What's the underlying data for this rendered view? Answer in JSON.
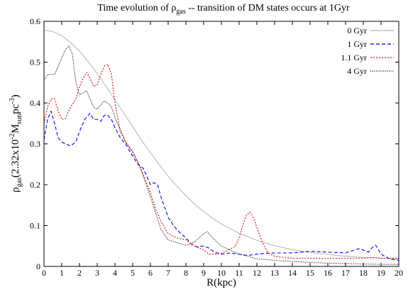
{
  "chart_data": {
    "type": "line",
    "title_prefix": "Time evolution of ρ",
    "title_sub": "gas",
    "title_suffix": " -- transition of DM states occurs at 1Gyr",
    "xlabel": "R(kpc)",
    "ylabel_parts": {
      "rho": "ρ",
      "rho_sub": "gas",
      "open": "(2.32x10",
      "exp1": "-2",
      "m": "M",
      "m_sub": "sun",
      "pc": "pc",
      "exp2": "-3",
      "close": ")"
    },
    "xlim": [
      0,
      20
    ],
    "ylim": [
      0,
      0.6
    ],
    "x_ticks": [
      0,
      1,
      2,
      3,
      4,
      5,
      6,
      7,
      8,
      9,
      10,
      11,
      12,
      13,
      14,
      15,
      16,
      17,
      18,
      19,
      20
    ],
    "x_tick_labels": [
      "0",
      "1",
      "2",
      "3",
      "4",
      "5",
      "6",
      "7",
      "8",
      "9",
      "10",
      "11",
      "12",
      "13",
      "14",
      "15",
      "16",
      "17",
      "18",
      "19",
      "20"
    ],
    "y_ticks": [
      0,
      0.1,
      0.2,
      0.3,
      0.4,
      0.5,
      0.6
    ],
    "y_tick_labels": [
      "0",
      "0.1",
      "0.2",
      "0.3",
      "0.4",
      "0.5",
      "0.6"
    ],
    "grid": false,
    "legend_position": "top-right",
    "series": [
      {
        "name": "0 Gyr",
        "color": "#b4b4b4",
        "dash": "",
        "x": [
          0,
          0.5,
          1,
          1.5,
          2,
          2.5,
          3,
          3.5,
          4,
          4.5,
          5,
          5.5,
          6,
          6.5,
          7,
          7.5,
          8,
          8.5,
          9,
          9.5,
          10,
          11,
          12,
          13,
          14,
          15,
          16,
          17,
          18,
          19,
          20
        ],
        "y": [
          0.578,
          0.575,
          0.565,
          0.548,
          0.527,
          0.501,
          0.472,
          0.44,
          0.408,
          0.375,
          0.342,
          0.309,
          0.278,
          0.249,
          0.221,
          0.196,
          0.173,
          0.152,
          0.134,
          0.118,
          0.104,
          0.081,
          0.064,
          0.051,
          0.041,
          0.034,
          0.029,
          0.025,
          0.022,
          0.02,
          0.018
        ]
      },
      {
        "name": "1 Gyr",
        "color": "#0000ff",
        "dash": "5,3",
        "x": [
          0,
          0.2,
          0.4,
          0.6,
          0.8,
          1.0,
          1.2,
          1.5,
          1.8,
          2.0,
          2.3,
          2.6,
          2.8,
          3.0,
          3.2,
          3.4,
          3.6,
          3.8,
          4.0,
          4.3,
          4.6,
          5.0,
          5.3,
          5.6,
          5.8,
          6.0,
          6.2,
          6.4,
          6.6,
          6.8,
          7.0,
          7.3,
          7.6,
          8.0,
          8.3,
          8.6,
          9.0,
          9.3,
          9.6,
          10.0,
          10.5,
          11.0,
          11.5,
          12.0,
          12.5,
          13.0,
          14.0,
          15.0,
          16.0,
          16.5,
          17.0,
          17.5,
          17.8,
          18.0,
          18.3,
          18.5,
          18.7,
          19.0,
          19.5,
          20.0
        ],
        "y": [
          0.31,
          0.36,
          0.38,
          0.35,
          0.315,
          0.305,
          0.3,
          0.295,
          0.305,
          0.33,
          0.36,
          0.375,
          0.36,
          0.36,
          0.355,
          0.37,
          0.37,
          0.36,
          0.34,
          0.315,
          0.3,
          0.27,
          0.25,
          0.24,
          0.22,
          0.2,
          0.205,
          0.2,
          0.17,
          0.145,
          0.12,
          0.1,
          0.085,
          0.07,
          0.055,
          0.048,
          0.05,
          0.045,
          0.035,
          0.03,
          0.033,
          0.03,
          0.027,
          0.03,
          0.032,
          0.033,
          0.033,
          0.037,
          0.035,
          0.034,
          0.033,
          0.04,
          0.044,
          0.04,
          0.035,
          0.046,
          0.052,
          0.03,
          0.018,
          0.015
        ]
      },
      {
        "name": "1.1 Gyr",
        "color": "#ff0000",
        "dash": "2,2",
        "x": [
          0,
          0.2,
          0.4,
          0.6,
          0.8,
          1.0,
          1.2,
          1.5,
          1.8,
          2.0,
          2.2,
          2.4,
          2.6,
          2.8,
          3.0,
          3.2,
          3.4,
          3.6,
          3.8,
          4.0,
          4.3,
          4.6,
          5.0,
          5.3,
          5.6,
          6.0,
          6.3,
          6.6,
          7.0,
          7.5,
          8.0,
          8.5,
          9.0,
          9.3,
          9.6,
          10.0,
          10.4,
          10.8,
          11.0,
          11.2,
          11.4,
          11.6,
          11.8,
          12.0,
          12.3,
          12.6,
          13.0,
          13.5,
          14.0,
          15.0,
          16.0,
          17.0,
          17.5,
          18.0,
          18.5,
          19.0,
          20.0
        ],
        "y": [
          0.35,
          0.39,
          0.41,
          0.41,
          0.38,
          0.36,
          0.362,
          0.39,
          0.41,
          0.44,
          0.46,
          0.475,
          0.46,
          0.44,
          0.445,
          0.47,
          0.49,
          0.495,
          0.47,
          0.4,
          0.33,
          0.305,
          0.28,
          0.255,
          0.225,
          0.18,
          0.14,
          0.11,
          0.08,
          0.07,
          0.065,
          0.05,
          0.04,
          0.03,
          0.03,
          0.032,
          0.04,
          0.05,
          0.07,
          0.1,
          0.125,
          0.133,
          0.12,
          0.095,
          0.06,
          0.035,
          0.025,
          0.022,
          0.02,
          0.02,
          0.02,
          0.02,
          0.02,
          0.02,
          0.022,
          0.02,
          0.02
        ]
      },
      {
        "name": "4 Gyr",
        "color": "#000000",
        "dash": "1,1.6",
        "x": [
          0,
          0.2,
          0.4,
          0.6,
          0.8,
          1.0,
          1.2,
          1.4,
          1.6,
          1.8,
          2.0,
          2.2,
          2.4,
          2.6,
          2.8,
          3.0,
          3.2,
          3.4,
          3.6,
          3.8,
          4.0,
          4.3,
          4.6,
          5.0,
          5.3,
          5.6,
          6.0,
          6.3,
          6.6,
          7.0,
          7.5,
          8.0,
          8.5,
          9.0,
          9.2,
          9.5,
          10.0,
          10.5,
          11.0,
          11.5,
          12.0,
          12.5,
          13.0,
          14.0,
          15.0,
          16.0,
          17.0,
          18.0,
          19.0,
          20.0
        ],
        "y": [
          0.455,
          0.47,
          0.47,
          0.47,
          0.49,
          0.51,
          0.53,
          0.54,
          0.52,
          0.45,
          0.42,
          0.425,
          0.43,
          0.41,
          0.39,
          0.385,
          0.395,
          0.405,
          0.4,
          0.39,
          0.365,
          0.335,
          0.305,
          0.28,
          0.255,
          0.22,
          0.17,
          0.13,
          0.09,
          0.065,
          0.058,
          0.052,
          0.06,
          0.08,
          0.085,
          0.07,
          0.05,
          0.04,
          0.03,
          0.025,
          0.018,
          0.017,
          0.015,
          0.012,
          0.01,
          0.008,
          0.007,
          0.006,
          0.005,
          0.005
        ]
      }
    ]
  }
}
